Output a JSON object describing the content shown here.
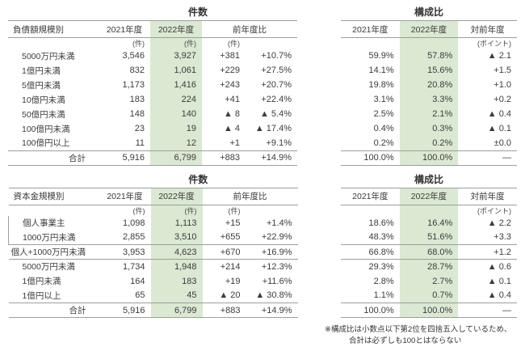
{
  "colors": {
    "highlight": "#dbe8d2",
    "line": "#9aa09a",
    "text": "#3c3c3c"
  },
  "note": {
    "line1": "※構成比は小数点以下第2位を四捨五入しているため、",
    "line2": "合計は必ずしも100とはならない"
  },
  "sections": [
    {
      "counts": {
        "title": "件数",
        "category": "負債額規模別",
        "headers": [
          "2021年度",
          "2022年度",
          "前年度比"
        ],
        "rows": [
          {
            "flags": "units",
            "v2021": "(件)",
            "v2022": "(件)",
            "diff": "(件)"
          },
          {
            "label": "5000万円未満",
            "v2021": "3,546",
            "v2022": "3,927",
            "diff": "+381",
            "pct": "+10.7%"
          },
          {
            "label": "1億円未満",
            "v2021": "832",
            "v2022": "1,061",
            "diff": "+229",
            "pct": "+27.5%"
          },
          {
            "label": "5億円未満",
            "v2021": "1,173",
            "v2022": "1,416",
            "diff": "+243",
            "pct": "+20.7%"
          },
          {
            "label": "10億円未満",
            "v2021": "183",
            "v2022": "224",
            "diff": "+41",
            "pct": "+22.4%"
          },
          {
            "label": "50億円未満",
            "v2021": "148",
            "v2022": "140",
            "diff": "▲ 8",
            "pct": "▲ 5.4%"
          },
          {
            "label": "100億円未満",
            "v2021": "23",
            "v2022": "19",
            "diff": "▲ 4",
            "pct": "▲ 17.4%"
          },
          {
            "label": "100億円以上",
            "v2021": "11",
            "v2022": "12",
            "diff": "+1",
            "pct": "+9.1%"
          },
          {
            "flags": "total",
            "label": "合計",
            "v2021": "5,916",
            "v2022": "6,799",
            "diff": "+883",
            "pct": "+14.9%"
          }
        ]
      },
      "ratio": {
        "title": "構成比",
        "headers": [
          "2021年度",
          "2022年度",
          "対前年度"
        ],
        "rows": [
          {
            "flags": "units",
            "diff": "(ポイント)"
          },
          {
            "r2021": "59.9%",
            "r2022": "57.8%",
            "diff": "▲ 2.1"
          },
          {
            "r2021": "14.1%",
            "r2022": "15.6%",
            "diff": "+1.5"
          },
          {
            "r2021": "19.8%",
            "r2022": "20.8%",
            "diff": "+1.0"
          },
          {
            "r2021": "3.1%",
            "r2022": "3.3%",
            "diff": "+0.2"
          },
          {
            "r2021": "2.5%",
            "r2022": "2.1%",
            "diff": "▲ 0.4"
          },
          {
            "r2021": "0.4%",
            "r2022": "0.3%",
            "diff": "▲ 0.1"
          },
          {
            "r2021": "0.2%",
            "r2022": "0.2%",
            "diff": "±0.0"
          },
          {
            "flags": "total",
            "r2021": "100.0%",
            "r2022": "100.0%",
            "diff": "—"
          }
        ]
      }
    },
    {
      "counts": {
        "title": "件数",
        "category": "資本金規模別",
        "headers": [
          "2021年度",
          "2022年度",
          "前年度比"
        ],
        "rows": [
          {
            "flags": "units",
            "v2021": "(件)",
            "v2022": "(件)",
            "diff": "(件)"
          },
          {
            "flags": "bracket",
            "label": "個人事業主",
            "v2021": "1,098",
            "v2022": "1,113",
            "diff": "+15",
            "pct": "+1.4%"
          },
          {
            "flags": "bracket",
            "label": "1000万円未満",
            "v2021": "2,855",
            "v2022": "3,510",
            "diff": "+655",
            "pct": "+22.9%"
          },
          {
            "flags": "subtotal",
            "label": "個人+1000万円未満",
            "v2021": "3,953",
            "v2022": "4,623",
            "diff": "+670",
            "pct": "+16.9%"
          },
          {
            "label": "5000万円未満",
            "v2021": "1,734",
            "v2022": "1,948",
            "diff": "+214",
            "pct": "+12.3%"
          },
          {
            "label": "1億円未満",
            "v2021": "164",
            "v2022": "183",
            "diff": "+19",
            "pct": "+11.6%"
          },
          {
            "label": "1億円以上",
            "v2021": "65",
            "v2022": "45",
            "diff": "▲ 20",
            "pct": "▲ 30.8%"
          },
          {
            "flags": "total",
            "label": "合計",
            "v2021": "5,916",
            "v2022": "6,799",
            "diff": "+883",
            "pct": "+14.9%"
          }
        ]
      },
      "ratio": {
        "title": "構成比",
        "headers": [
          "2021年度",
          "2022年度",
          "対前年度"
        ],
        "rows": [
          {
            "flags": "units",
            "diff": "(ポイント)"
          },
          {
            "r2021": "18.6%",
            "r2022": "16.4%",
            "diff": "▲ 2.2"
          },
          {
            "r2021": "48.3%",
            "r2022": "51.6%",
            "diff": "+3.3"
          },
          {
            "flags": "subtotal",
            "r2021": "66.8%",
            "r2022": "68.0%",
            "diff": "+1.2"
          },
          {
            "r2021": "29.3%",
            "r2022": "28.7%",
            "diff": "▲ 0.6"
          },
          {
            "r2021": "2.8%",
            "r2022": "2.7%",
            "diff": "▲ 0.1"
          },
          {
            "r2021": "1.1%",
            "r2022": "0.7%",
            "diff": "▲ 0.4"
          },
          {
            "flags": "total",
            "r2021": "100.0%",
            "r2022": "100.0%",
            "diff": "—"
          }
        ]
      }
    }
  ]
}
